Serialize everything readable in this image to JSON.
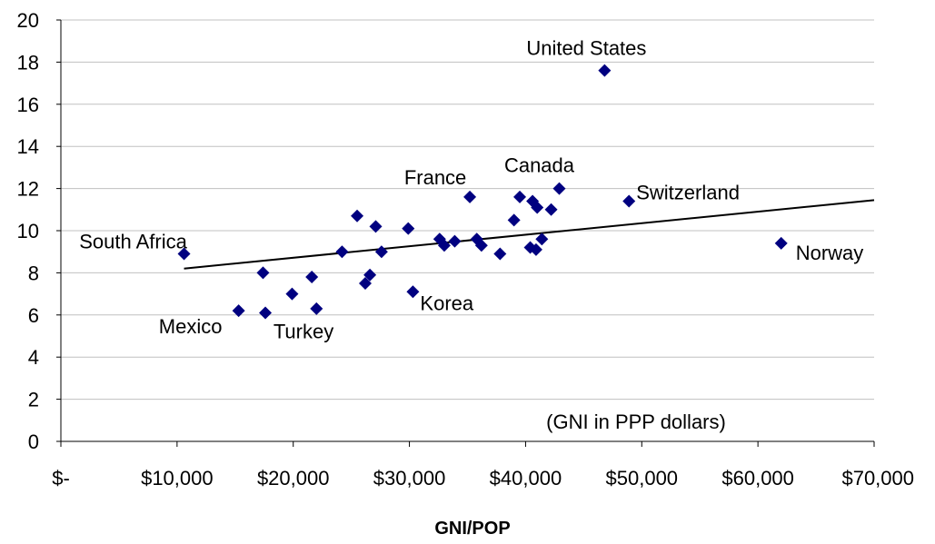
{
  "chart_data": {
    "type": "scatter",
    "title": "",
    "xlabel": "GNI/POP",
    "ylabel": "",
    "note": "(GNI in PPP dollars)",
    "xlim": [
      0,
      70000
    ],
    "ylim": [
      0,
      20
    ],
    "grid": "horizontal",
    "legend": "none",
    "x_ticks": [
      0,
      10000,
      20000,
      30000,
      40000,
      50000,
      60000,
      70000
    ],
    "x_tick_labels": [
      "$-",
      "$10,000",
      "$20,000",
      "$30,000",
      "$40,000",
      "$50,000",
      "$60,000",
      "$70,000"
    ],
    "y_ticks": [
      0,
      2,
      4,
      6,
      8,
      10,
      12,
      14,
      16,
      18,
      20
    ],
    "y_tick_labels": [
      "0",
      "2",
      "4",
      "6",
      "8",
      "10",
      "12",
      "14",
      "16",
      "18",
      "20"
    ],
    "marker_color": "#000080",
    "points": [
      {
        "x": 10600,
        "y": 8.9,
        "label": "South Africa"
      },
      {
        "x": 15300,
        "y": 6.2,
        "label": "Mexico"
      },
      {
        "x": 17400,
        "y": 8.0
      },
      {
        "x": 17600,
        "y": 6.1,
        "label": "Turkey"
      },
      {
        "x": 19900,
        "y": 7.0
      },
      {
        "x": 21600,
        "y": 7.8
      },
      {
        "x": 22000,
        "y": 6.3
      },
      {
        "x": 24200,
        "y": 9.0
      },
      {
        "x": 25500,
        "y": 10.7
      },
      {
        "x": 26200,
        "y": 7.5
      },
      {
        "x": 26600,
        "y": 7.9
      },
      {
        "x": 27100,
        "y": 10.2
      },
      {
        "x": 27600,
        "y": 9.0
      },
      {
        "x": 29900,
        "y": 10.1
      },
      {
        "x": 30300,
        "y": 7.1,
        "label": "Korea"
      },
      {
        "x": 32600,
        "y": 9.6
      },
      {
        "x": 33000,
        "y": 9.3
      },
      {
        "x": 33900,
        "y": 9.5
      },
      {
        "x": 35200,
        "y": 11.6,
        "label": "France"
      },
      {
        "x": 35800,
        "y": 9.6
      },
      {
        "x": 36200,
        "y": 9.3
      },
      {
        "x": 37800,
        "y": 8.9
      },
      {
        "x": 39000,
        "y": 10.5
      },
      {
        "x": 39500,
        "y": 11.6
      },
      {
        "x": 40400,
        "y": 9.2
      },
      {
        "x": 40600,
        "y": 11.4
      },
      {
        "x": 40900,
        "y": 9.1
      },
      {
        "x": 41000,
        "y": 11.1
      },
      {
        "x": 41400,
        "y": 9.6
      },
      {
        "x": 42200,
        "y": 11.0
      },
      {
        "x": 42900,
        "y": 12.0,
        "label": "Canada"
      },
      {
        "x": 46800,
        "y": 17.6,
        "label": "United States"
      },
      {
        "x": 48900,
        "y": 11.4,
        "label": "Switzerland"
      },
      {
        "x": 62000,
        "y": 9.4,
        "label": "Norway"
      }
    ],
    "trendline": {
      "x": [
        10600,
        70000
      ],
      "y": [
        8.2,
        11.45
      ]
    }
  }
}
